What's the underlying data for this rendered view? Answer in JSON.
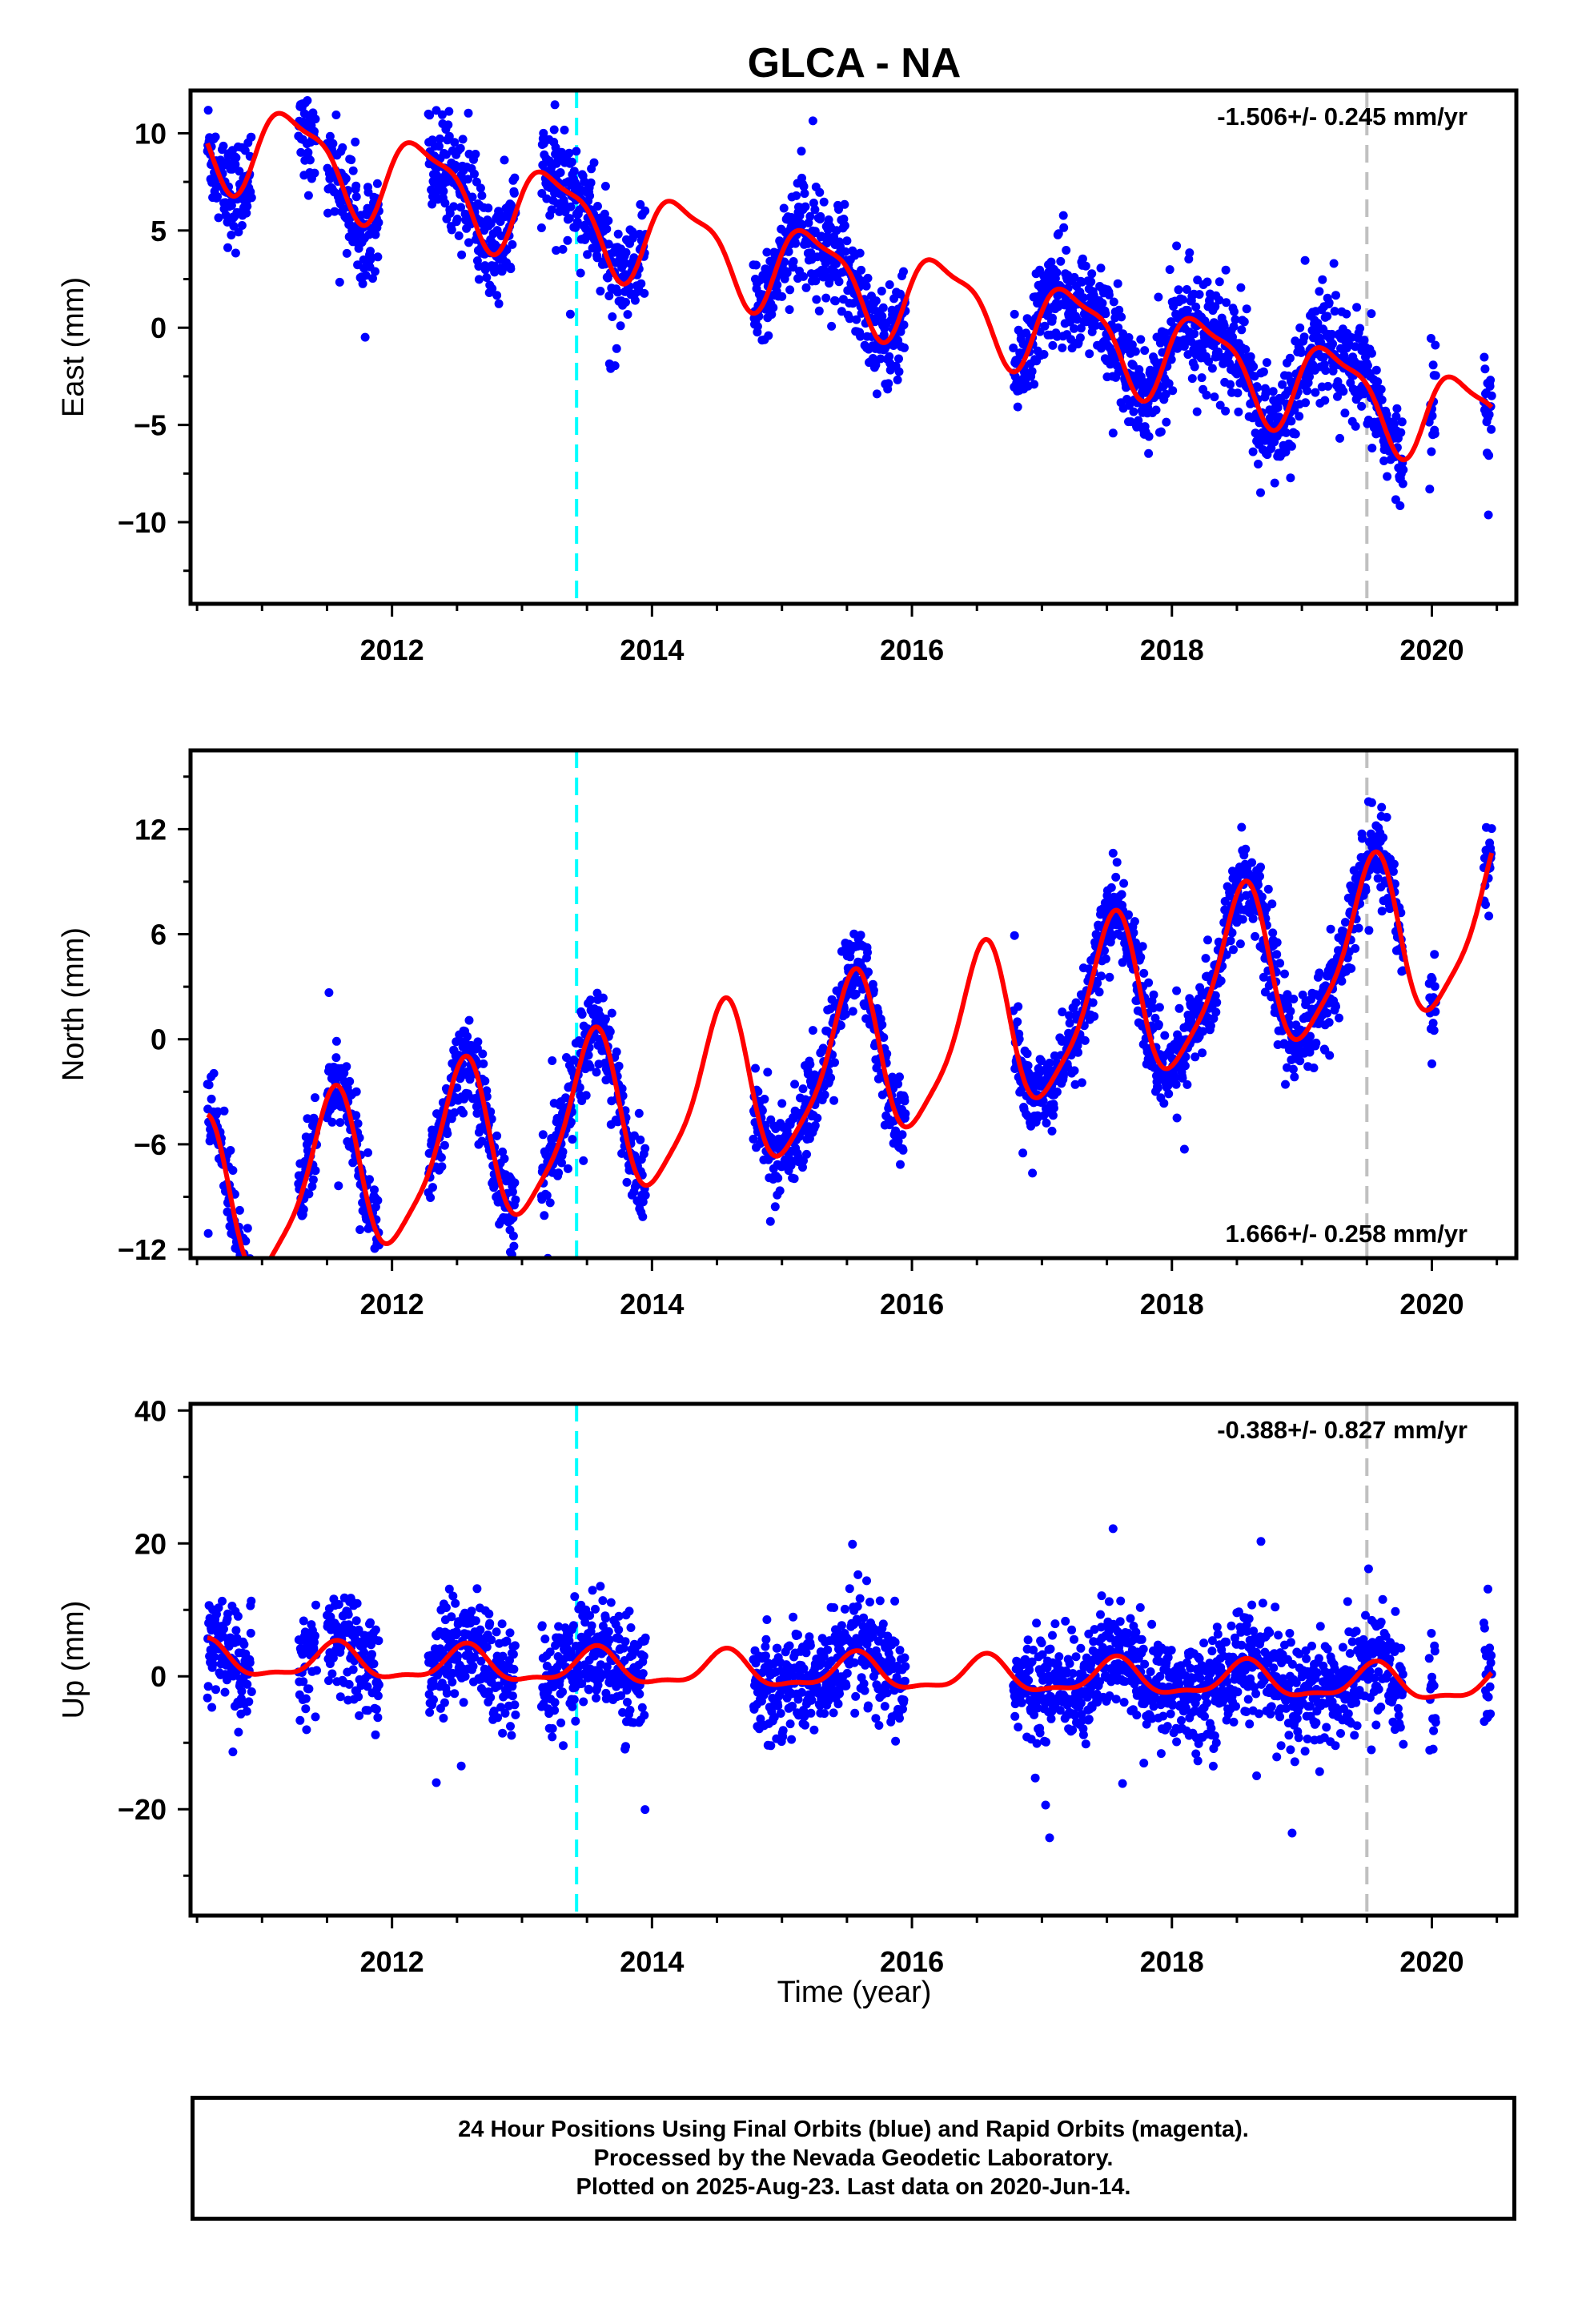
{
  "footer": {
    "line1": "24 Hour Positions Using Final Orbits (blue) and Rapid Orbits (magenta).",
    "line2": "Processed by the Nevada Geodetic Laboratory.",
    "line3": "Plotted on 2025-Aug-23. Last data on 2020-Jun-14."
  },
  "colors": {
    "points": "#0000ff",
    "model": "#ff0000",
    "event_line": "#00ffff",
    "end_line": "#c0c0c0"
  },
  "chart_data": [
    {
      "type": "scatter",
      "title": "GLCA - NA",
      "xlabel": "",
      "ylabel": "East (mm)",
      "xlim": [
        2010.45,
        2020.65
      ],
      "ylim": [
        -14.2,
        12.2
      ],
      "x_ticks": [
        2012,
        2014,
        2016,
        2018,
        2020
      ],
      "y_ticks": [
        10,
        5,
        0,
        -5,
        -10
      ],
      "grid": false,
      "rate_label": "-1.506+/- 0.245 mm/yr",
      "rate_position": "top-right",
      "vertical_lines": [
        {
          "x": 2013.42,
          "style": "dashed",
          "color": "#00ffff"
        },
        {
          "x": 2019.5,
          "style": "dashed",
          "color": "#c0c0c0"
        }
      ],
      "data_segments": [
        [
          2010.58,
          2010.92
        ],
        [
          2011.28,
          2011.42
        ],
        [
          2011.5,
          2011.9
        ],
        [
          2012.28,
          2012.95
        ],
        [
          2013.15,
          2013.95
        ],
        [
          2014.78,
          2015.22
        ],
        [
          2015.22,
          2015.95
        ],
        [
          2016.78,
          2017.05
        ],
        [
          2017.05,
          2019.78
        ],
        [
          2019.98,
          2020.03
        ],
        [
          2020.4,
          2020.46
        ]
      ],
      "trend": {
        "offset": 2.5,
        "rate": -1.506,
        "ref": 2015.5
      },
      "season": {
        "a1": 2.2,
        "p1": 0.0,
        "a2": 0.7,
        "p2": 1.0
      },
      "scatter_sd": 1.3,
      "model_start": 2010.58,
      "model_end": 2020.46
    },
    {
      "type": "scatter",
      "title": "",
      "xlabel": "",
      "ylabel": "North (mm)",
      "xlim": [
        2010.45,
        2020.65
      ],
      "ylim": [
        -12.5,
        16.5
      ],
      "x_ticks": [
        2012,
        2014,
        2016,
        2018,
        2020
      ],
      "y_ticks": [
        12,
        6,
        0,
        -6,
        -12
      ],
      "grid": false,
      "rate_label": "1.666+/- 0.258 mm/yr",
      "rate_position": "bottom-right",
      "vertical_lines": [
        {
          "x": 2013.42,
          "style": "dashed",
          "color": "#00ffff"
        },
        {
          "x": 2019.5,
          "style": "dashed",
          "color": "#c0c0c0"
        }
      ],
      "data_segments": [
        [
          2010.58,
          2010.92
        ],
        [
          2011.28,
          2011.42
        ],
        [
          2011.5,
          2011.9
        ],
        [
          2012.28,
          2012.95
        ],
        [
          2013.15,
          2013.95
        ],
        [
          2014.78,
          2015.22
        ],
        [
          2015.22,
          2015.95
        ],
        [
          2016.78,
          2017.05
        ],
        [
          2017.05,
          2019.78
        ],
        [
          2019.98,
          2020.03
        ],
        [
          2020.4,
          2020.46
        ]
      ],
      "trend": {
        "offset": -1.5,
        "rate": 1.666,
        "ref": 2015.5
      },
      "season": {
        "a1": 4.6,
        "p1": -1.8,
        "a2": 1.0,
        "p2": 0.3
      },
      "scatter_sd": 1.2,
      "model_start": 2010.58,
      "model_end": 2020.46
    },
    {
      "type": "scatter",
      "title": "",
      "xlabel": "Time (year)",
      "ylabel": "Up (mm)",
      "xlim": [
        2010.45,
        2020.65
      ],
      "ylim": [
        -36,
        41
      ],
      "x_ticks": [
        2012,
        2014,
        2016,
        2018,
        2020
      ],
      "y_ticks": [
        40,
        20,
        0,
        -20
      ],
      "grid": false,
      "rate_label": "-0.388+/- 0.827 mm/yr",
      "rate_position": "top-right",
      "vertical_lines": [
        {
          "x": 2013.42,
          "style": "dashed",
          "color": "#00ffff"
        },
        {
          "x": 2019.5,
          "style": "dashed",
          "color": "#c0c0c0"
        }
      ],
      "data_segments": [
        [
          2010.58,
          2010.92
        ],
        [
          2011.28,
          2011.42
        ],
        [
          2011.5,
          2011.9
        ],
        [
          2012.28,
          2012.95
        ],
        [
          2013.15,
          2013.95
        ],
        [
          2014.78,
          2015.22
        ],
        [
          2015.22,
          2015.95
        ],
        [
          2016.78,
          2017.05
        ],
        [
          2017.05,
          2019.78
        ],
        [
          2019.98,
          2020.03
        ],
        [
          2020.4,
          2020.46
        ]
      ],
      "trend": {
        "offset": 0.5,
        "rate": -0.388,
        "ref": 2015.5
      },
      "season": {
        "a1": 2.5,
        "p1": -2.0,
        "a2": 0.9,
        "p2": 0.5
      },
      "scatter_sd": 4.0,
      "model_start": 2010.58,
      "model_end": 2020.46
    }
  ]
}
